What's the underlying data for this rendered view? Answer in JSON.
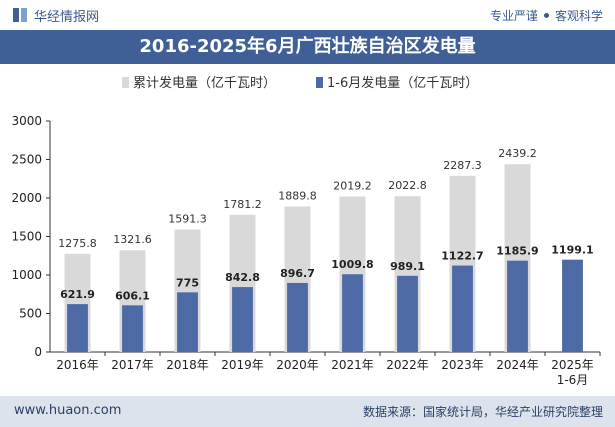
{
  "header": {
    "site_name": "华经情报网",
    "slogan_left": "专业严谨",
    "slogan_right": "客观科学"
  },
  "footer": {
    "url": "www.huaon.com",
    "source": "数据来源：国家统计局，华经产业研究院整理"
  },
  "colors": {
    "title_bg": "#3f5f96",
    "cumulative": "#d9d9d9",
    "monthly": "#4d6aa6"
  },
  "chart_data": {
    "type": "bar",
    "title": "2016-2025年6月广西壮族自治区发电量",
    "categories": [
      "2016年",
      "2017年",
      "2018年",
      "2019年",
      "2020年",
      "2021年",
      "2022年",
      "2023年",
      "2024年",
      "2025年\n1-6月"
    ],
    "series": [
      {
        "name": "累计发电量（亿千瓦时）",
        "values": [
          1275.8,
          1321.6,
          1591.3,
          1781.2,
          1889.8,
          2019.2,
          2022.8,
          2287.3,
          2439.2,
          null
        ]
      },
      {
        "name": "1-6月发电量（亿千瓦时）",
        "values": [
          621.9,
          606.1,
          775,
          842.8,
          896.7,
          1009.8,
          989.1,
          1122.7,
          1185.9,
          1199.1
        ]
      }
    ],
    "ylim": [
      0,
      3000
    ],
    "yticks": [
      0,
      500,
      1000,
      1500,
      2000,
      2500,
      3000
    ],
    "legend_position": "top-center",
    "grid": false
  }
}
